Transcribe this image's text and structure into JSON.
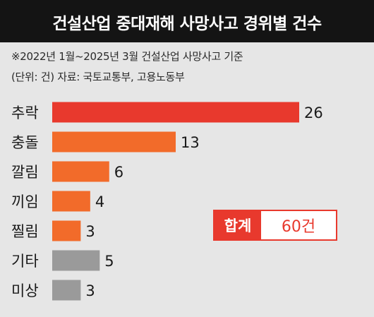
{
  "header": {
    "title": "건설산업 중대재해 사망사고 경위별 건수"
  },
  "notes": {
    "period": "※2022년 1월~2025년 3월 건설산업 사망사고 기준",
    "unit_source": "(단위: 건) 자료: 국토교통부, 고용노동부"
  },
  "total": {
    "label": "합계",
    "value": "60건"
  },
  "colors": {
    "highlight": "#e8392d",
    "primary": "#f26b2a",
    "muted": "#9a9a9a",
    "title_bg": "#141414",
    "background": "#e6e6e6"
  },
  "chart_data": {
    "type": "bar",
    "orientation": "horizontal",
    "title": "건설산업 중대재해 사망사고 경위별 건수",
    "categories": [
      "추락",
      "충돌",
      "깔림",
      "끼임",
      "찔림",
      "기타",
      "미상"
    ],
    "values": [
      26,
      13,
      6,
      4,
      3,
      5,
      3
    ],
    "bar_colors": [
      "#e8392d",
      "#f26b2a",
      "#f26b2a",
      "#f26b2a",
      "#f26b2a",
      "#9a9a9a",
      "#9a9a9a"
    ],
    "xlim": [
      0,
      26
    ],
    "grid": false,
    "legend": "none"
  }
}
